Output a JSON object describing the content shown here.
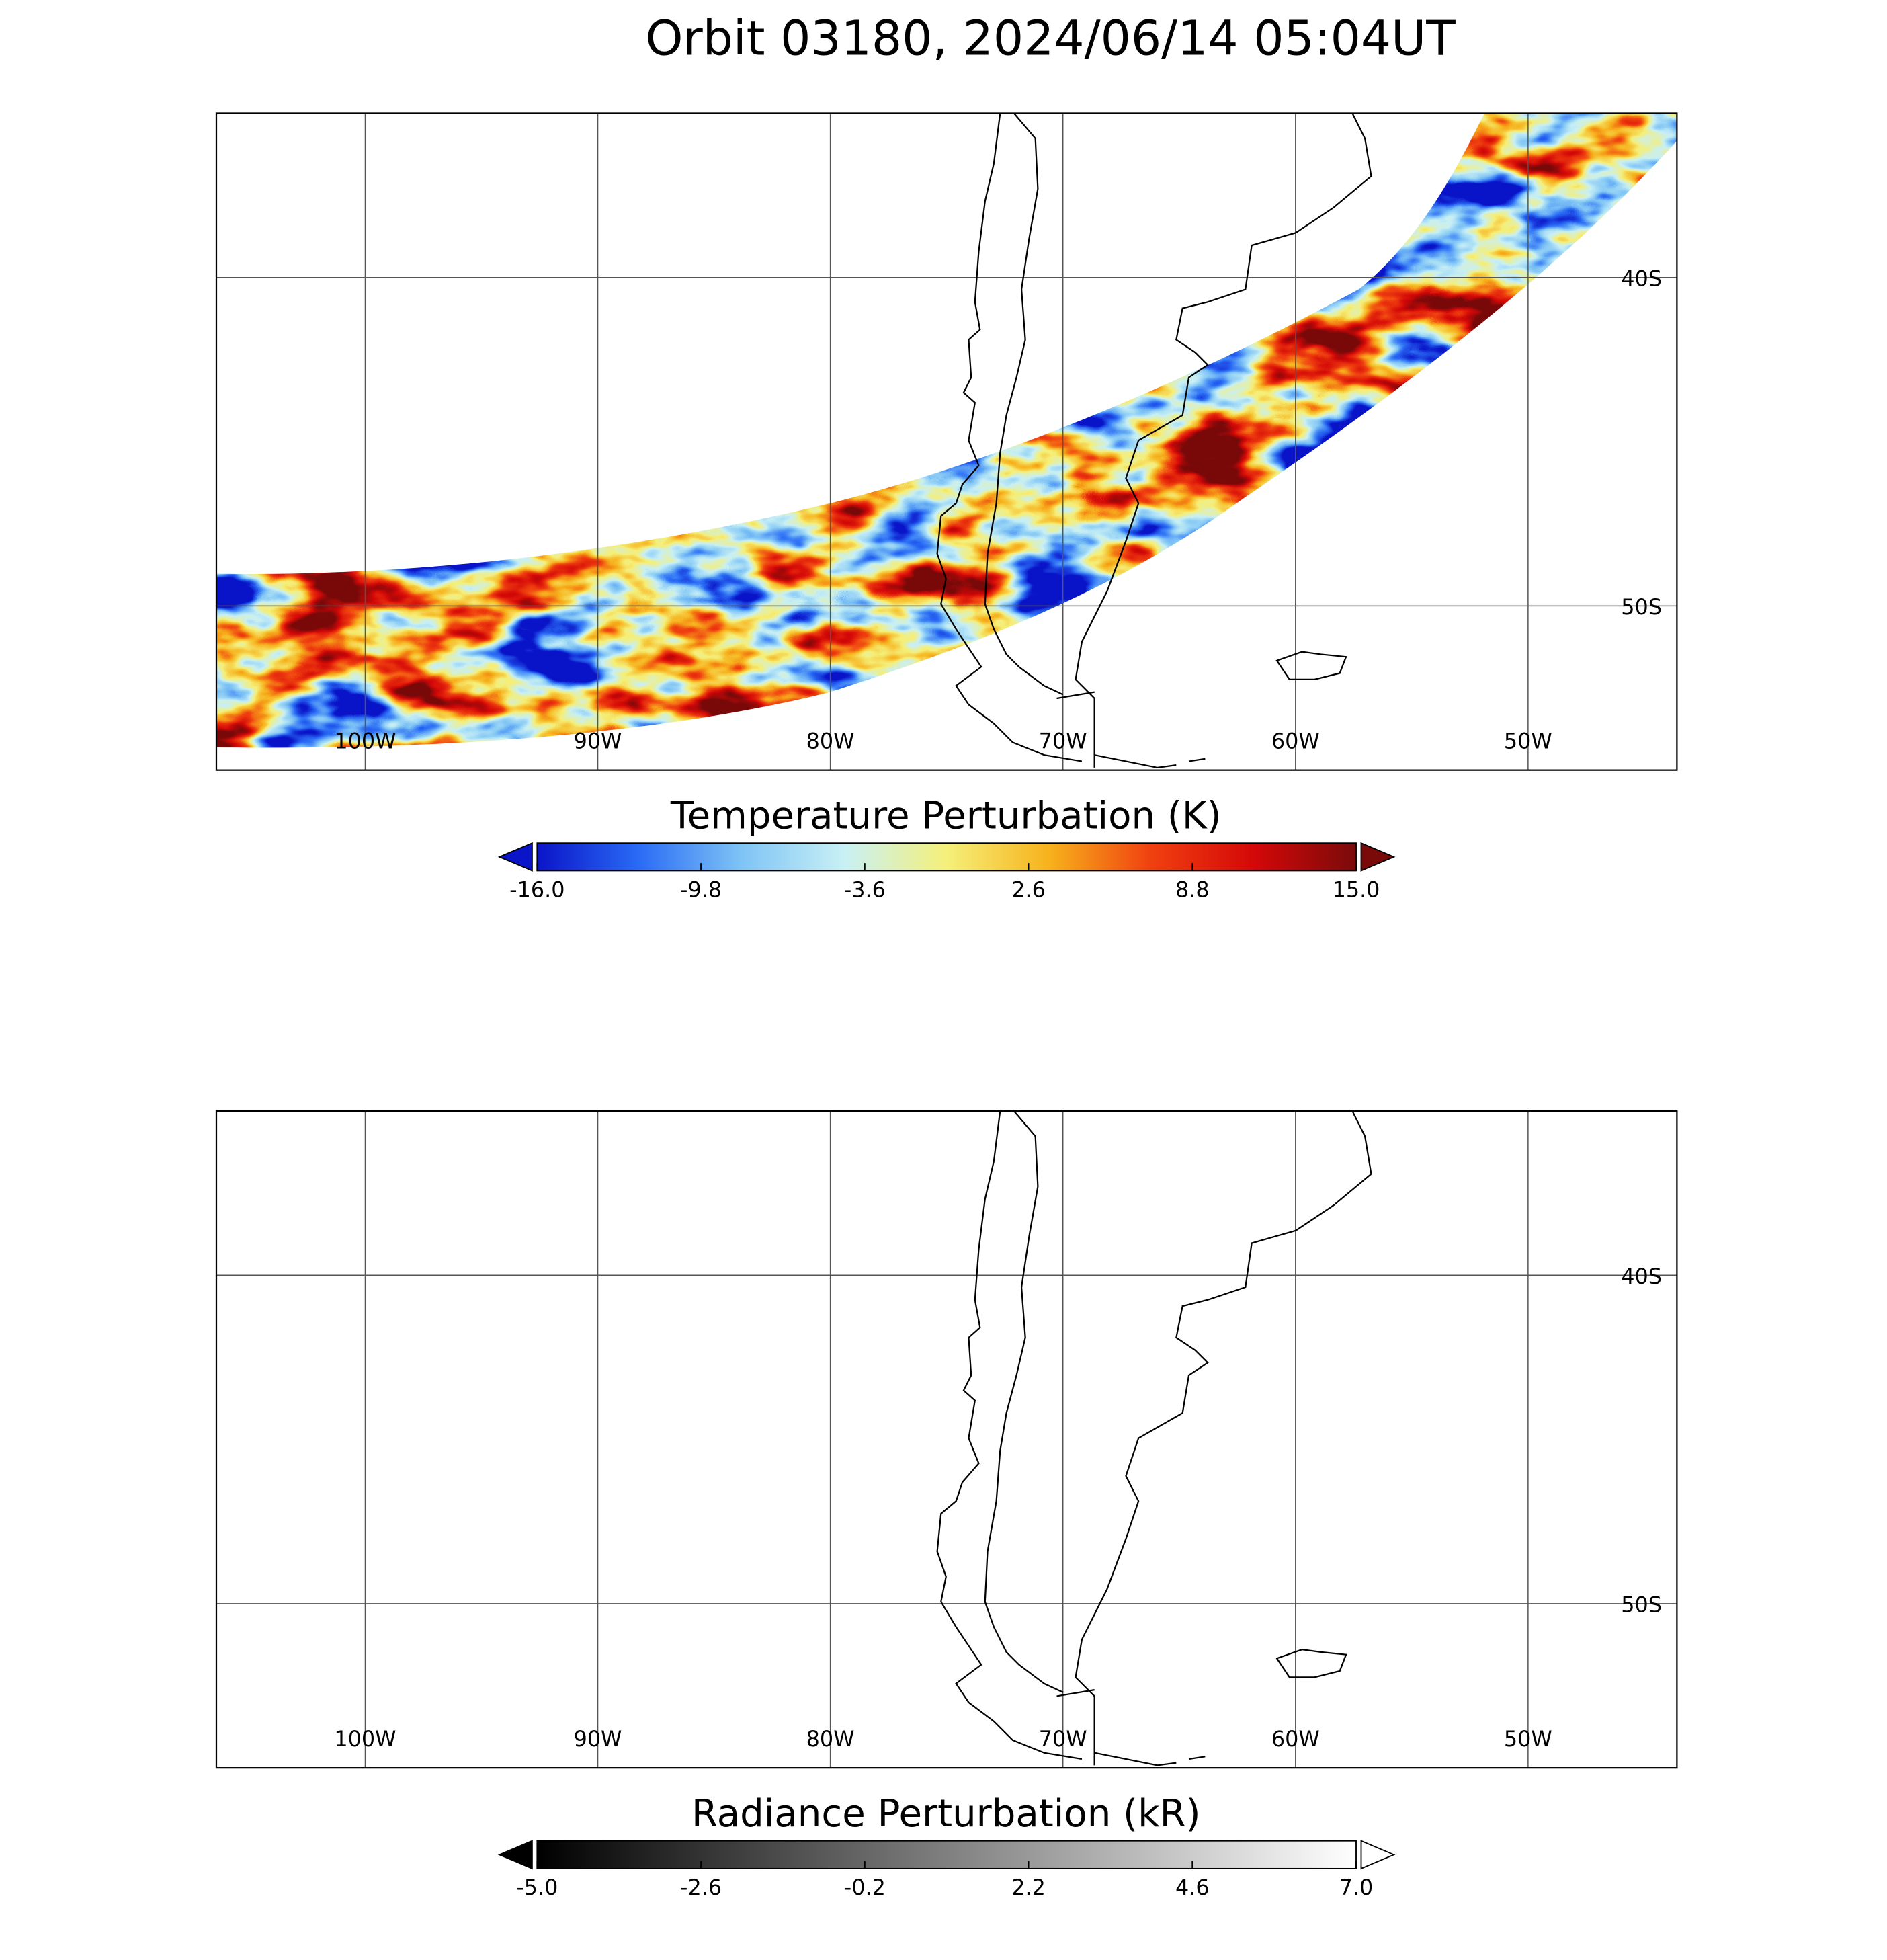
{
  "title": "Orbit 03180, 2024/06/14 05:04UT",
  "panels": [
    {
      "lonlim": [
        -106.4,
        -43.6
      ],
      "latlim": [
        -55,
        -35
      ],
      "lon_ticks": [
        {
          "value": -100,
          "label": "100W"
        },
        {
          "value": -90,
          "label": "90W"
        },
        {
          "value": -80,
          "label": "80W"
        },
        {
          "value": -70,
          "label": "70W"
        },
        {
          "value": -60,
          "label": "60W"
        },
        {
          "value": -50,
          "label": "50W"
        }
      ],
      "lat_ticks": [
        {
          "value": -40,
          "label": "40S"
        },
        {
          "value": -50,
          "label": "50S"
        }
      ],
      "colorbar": {
        "title": "Temperature Perturbation (K)",
        "range": [
          -16,
          15
        ],
        "ticks": [
          {
            "value": -16,
            "label": "-16.0"
          },
          {
            "value": -9.8,
            "label": "-9.8"
          },
          {
            "value": -3.6,
            "label": "-3.6"
          },
          {
            "value": 2.6,
            "label": "2.6"
          },
          {
            "value": 8.8,
            "label": "8.8"
          },
          {
            "value": 15,
            "label": "15.0"
          }
        ],
        "colors": [
          "#0a14c8",
          "#2a6cf5",
          "#7fc4f5",
          "#c8f0f5",
          "#f5f07a",
          "#f7b21c",
          "#f04010",
          "#d40808",
          "#7a0a0a"
        ],
        "extend_colors": [
          "#0a14c8",
          "#7a0a0a"
        ]
      }
    },
    {
      "lonlim": [
        -106.4,
        -43.6
      ],
      "latlim": [
        -55,
        -35
      ],
      "lon_ticks": [
        {
          "value": -100,
          "label": "100W"
        },
        {
          "value": -90,
          "label": "90W"
        },
        {
          "value": -80,
          "label": "80W"
        },
        {
          "value": -70,
          "label": "70W"
        },
        {
          "value": -60,
          "label": "60W"
        },
        {
          "value": -50,
          "label": "50W"
        }
      ],
      "lat_ticks": [
        {
          "value": -40,
          "label": "40S"
        },
        {
          "value": -50,
          "label": "50S"
        }
      ],
      "colorbar": {
        "title": "Radiance Perturbation (kR)",
        "range": [
          -5,
          7
        ],
        "ticks": [
          {
            "value": -5,
            "label": "-5.0"
          },
          {
            "value": -2.6,
            "label": "-2.6"
          },
          {
            "value": -0.2,
            "label": "-0.2"
          },
          {
            "value": 2.2,
            "label": "2.2"
          },
          {
            "value": 4.6,
            "label": "4.6"
          },
          {
            "value": 7,
            "label": "7.0"
          }
        ],
        "colors": [
          "#000000",
          "#ffffff"
        ],
        "extend_colors": [
          "#000000",
          "#ffffff"
        ]
      }
    }
  ]
}
